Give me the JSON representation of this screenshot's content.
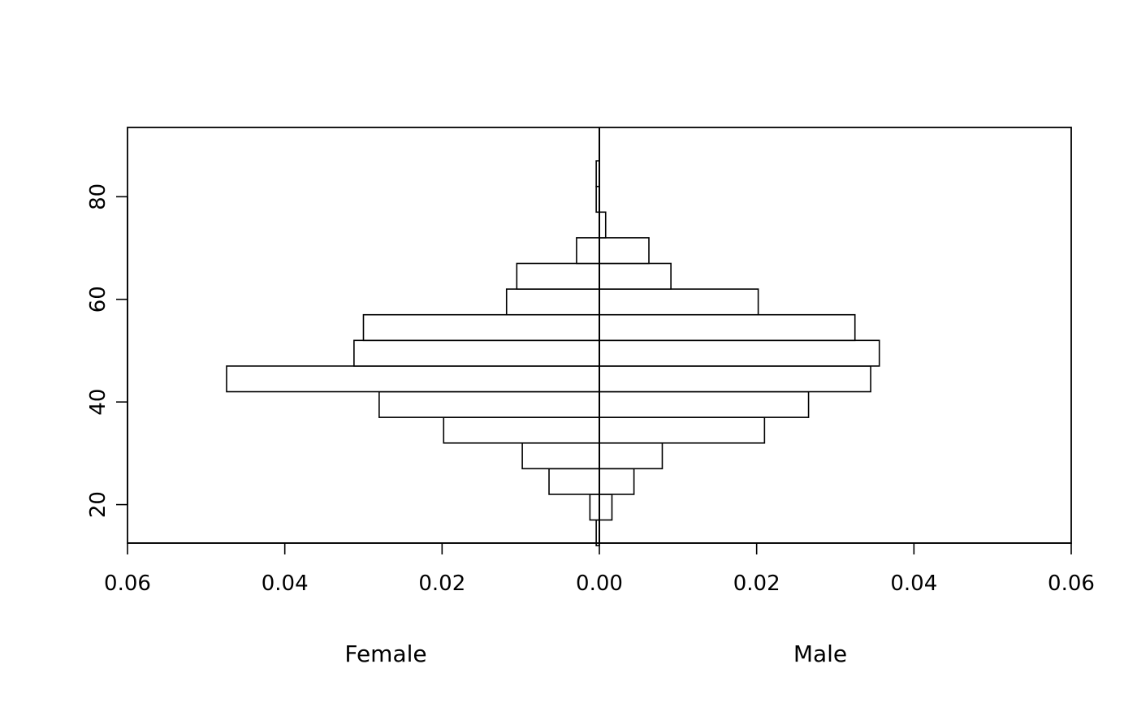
{
  "chart_data": {
    "type": "bar",
    "orientation": "horizontal",
    "layout": "back-to-back",
    "title": "",
    "y_bins": [
      [
        12,
        17
      ],
      [
        17,
        22
      ],
      [
        22,
        27
      ],
      [
        27,
        32
      ],
      [
        32,
        37
      ],
      [
        37,
        42
      ],
      [
        42,
        47
      ],
      [
        47,
        52
      ],
      [
        52,
        57
      ],
      [
        57,
        62
      ],
      [
        62,
        67
      ],
      [
        67,
        72
      ],
      [
        72,
        77
      ],
      [
        77,
        82
      ],
      [
        82,
        87
      ],
      [
        87,
        92
      ]
    ],
    "series": [
      {
        "name": "Female",
        "side": "left",
        "values": [
          0.0004,
          0.0012,
          0.0064,
          0.0098,
          0.0198,
          0.028,
          0.0474,
          0.0312,
          0.03,
          0.0118,
          0.0105,
          0.0029,
          0.0,
          0.0004,
          0.0004,
          0.0
        ]
      },
      {
        "name": "Male",
        "side": "right",
        "values": [
          0.0,
          0.0016,
          0.0044,
          0.008,
          0.021,
          0.0266,
          0.0345,
          0.0356,
          0.0325,
          0.0202,
          0.0091,
          0.0063,
          0.0008,
          0.0,
          0.0,
          0.0
        ]
      }
    ],
    "xlim": [
      -0.06,
      0.06
    ],
    "ylim": [
      12.5,
      93.5
    ],
    "x_ticks": [
      -0.06,
      -0.04,
      -0.02,
      0.0,
      0.02,
      0.04,
      0.06
    ],
    "x_tick_labels": [
      "0.06",
      "0.04",
      "0.02",
      "0.00",
      "0.02",
      "0.04",
      "0.06"
    ],
    "y_ticks": [
      20,
      40,
      60,
      80
    ],
    "y_tick_labels": [
      "20",
      "40",
      "60",
      "80"
    ],
    "xlabel_left": "Female",
    "xlabel_right": "Male",
    "grid": false,
    "legend": "none"
  }
}
